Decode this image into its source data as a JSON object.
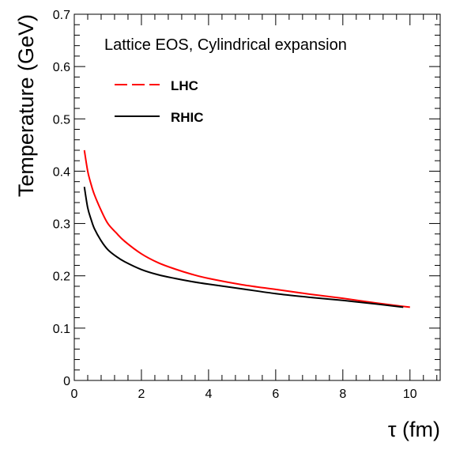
{
  "chart_data": {
    "type": "line",
    "title": "Lattice EOS, Cylindrical expansion",
    "xlabel": "τ (fm)",
    "ylabel": "Temperature (GeV)",
    "xlim": [
      0,
      10.9
    ],
    "ylim": [
      0,
      0.7
    ],
    "x_ticks": [
      0,
      2,
      4,
      6,
      8,
      10
    ],
    "y_ticks": [
      0,
      0.1,
      0.2,
      0.3,
      0.4,
      0.5,
      0.6,
      0.7
    ],
    "grid": false,
    "legend": "top-left",
    "series": [
      {
        "name": "LHC",
        "color": "#ff0000",
        "legend_style": "dashed",
        "x": [
          0.3,
          0.4,
          0.5,
          0.6,
          0.8,
          1.0,
          1.25,
          1.5,
          2.0,
          2.5,
          3.0,
          3.5,
          4.0,
          5.0,
          6.0,
          7.0,
          8.0,
          9.0,
          10.0
        ],
        "y": [
          0.44,
          0.4,
          0.375,
          0.355,
          0.325,
          0.3,
          0.282,
          0.266,
          0.242,
          0.225,
          0.213,
          0.203,
          0.195,
          0.183,
          0.174,
          0.165,
          0.157,
          0.148,
          0.14
        ]
      },
      {
        "name": "RHIC",
        "color": "#000000",
        "legend_style": "solid",
        "x": [
          0.3,
          0.4,
          0.5,
          0.6,
          0.8,
          1.0,
          1.25,
          1.5,
          2.0,
          2.5,
          3.0,
          3.5,
          4.0,
          5.0,
          6.0,
          7.0,
          8.0,
          9.0,
          9.8
        ],
        "y": [
          0.37,
          0.33,
          0.308,
          0.29,
          0.267,
          0.25,
          0.237,
          0.227,
          0.212,
          0.202,
          0.195,
          0.189,
          0.184,
          0.175,
          0.166,
          0.159,
          0.153,
          0.146,
          0.14
        ]
      }
    ]
  }
}
